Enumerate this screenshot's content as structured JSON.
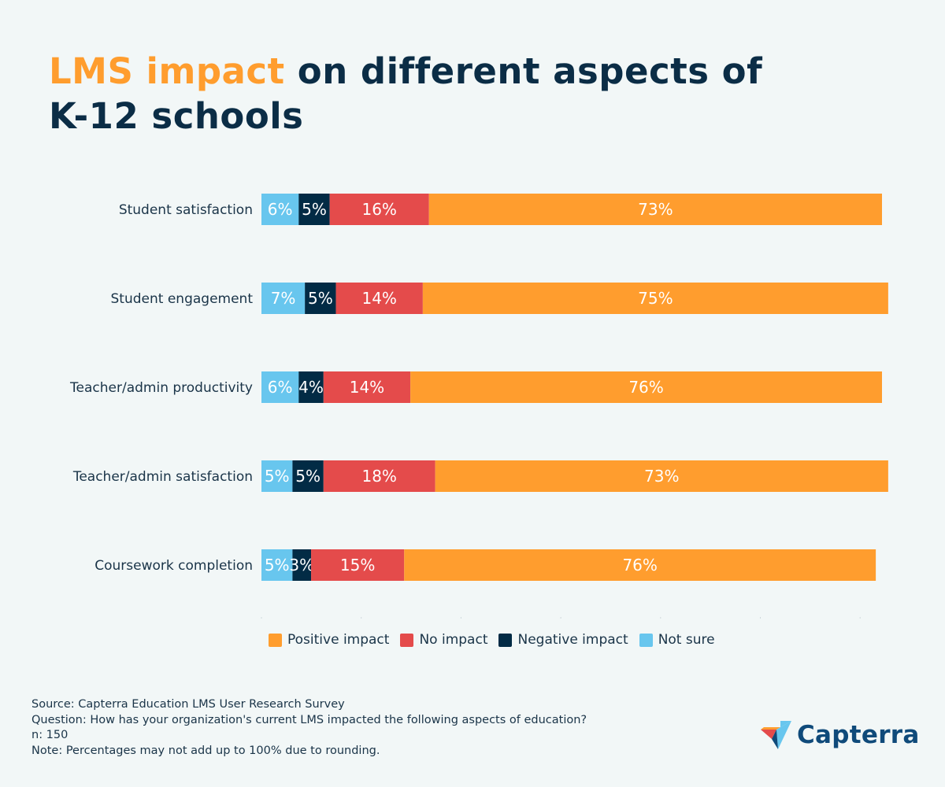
{
  "title": {
    "highlight": "LMS impact",
    "rest": " on different aspects of K-12 schools"
  },
  "colors": {
    "Positive impact": "#ff9d2e",
    "No impact": "#e44b4b",
    "Negative impact": "#022b45",
    "Not sure": "#68c6ee",
    "background": "#f2f7f7"
  },
  "chart_data": {
    "type": "bar",
    "orientation": "horizontal",
    "stacked": true,
    "categories": [
      "Student satisfaction",
      "Student engagement",
      "Teacher/admin productivity",
      "Teacher/admin satisfaction",
      "Coursework completion"
    ],
    "series": [
      {
        "name": "Not sure",
        "values": [
          6,
          7,
          6,
          5,
          5
        ]
      },
      {
        "name": "Negative impact",
        "values": [
          5,
          5,
          4,
          5,
          3
        ]
      },
      {
        "name": "No impact",
        "values": [
          16,
          14,
          14,
          18,
          15
        ]
      },
      {
        "name": "Positive impact",
        "values": [
          73,
          75,
          76,
          73,
          76
        ]
      }
    ],
    "value_suffix": "%",
    "xlim": [
      0,
      100
    ],
    "legend_position": "bottom",
    "legend": [
      "Positive impact",
      "No impact",
      "Negative impact",
      "Not sure"
    ]
  },
  "notes": [
    "Source: Capterra Education LMS User Research Survey",
    "Question: How has your organization's current LMS impacted the following aspects of education?",
    "n: 150",
    "Note: Percentages may not add up to 100% due to rounding."
  ],
  "logo": {
    "text": "Capterra"
  }
}
